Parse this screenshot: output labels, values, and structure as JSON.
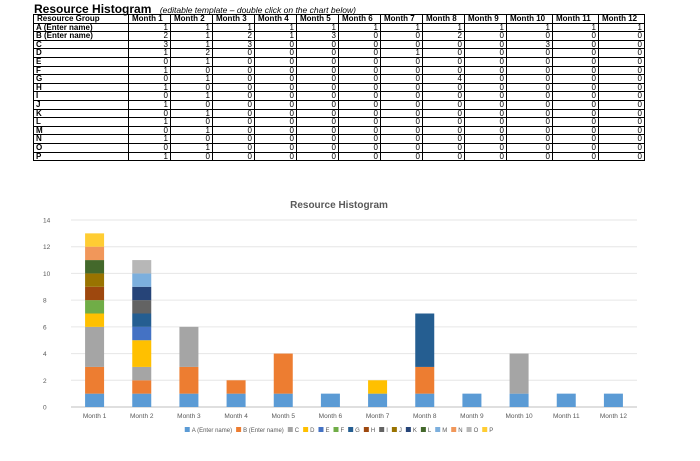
{
  "header": {
    "title": "Resource Histogram",
    "subtitle": "(editable template – double click on the chart below)"
  },
  "table": {
    "columns": [
      "Resource Group",
      "Month 1",
      "Month 2",
      "Month 3",
      "Month 4",
      "Month 5",
      "Month 6",
      "Month 7",
      "Month 8",
      "Month 9",
      "Month 10",
      "Month 11",
      "Month 12"
    ],
    "rows": [
      {
        "label": "A (Enter name)",
        "values": [
          1,
          1,
          1,
          1,
          1,
          1,
          1,
          1,
          1,
          1,
          1,
          1
        ]
      },
      {
        "label": "B (Enter name)",
        "values": [
          2,
          1,
          2,
          1,
          3,
          0,
          0,
          2,
          0,
          0,
          0,
          0
        ]
      },
      {
        "label": "C",
        "values": [
          3,
          1,
          3,
          0,
          0,
          0,
          0,
          0,
          0,
          3,
          0,
          0
        ]
      },
      {
        "label": "D",
        "values": [
          1,
          2,
          0,
          0,
          0,
          0,
          1,
          0,
          0,
          0,
          0,
          0
        ]
      },
      {
        "label": "E",
        "values": [
          0,
          1,
          0,
          0,
          0,
          0,
          0,
          0,
          0,
          0,
          0,
          0
        ]
      },
      {
        "label": "F",
        "values": [
          1,
          0,
          0,
          0,
          0,
          0,
          0,
          0,
          0,
          0,
          0,
          0
        ]
      },
      {
        "label": "G",
        "values": [
          0,
          1,
          0,
          0,
          0,
          0,
          0,
          4,
          0,
          0,
          0,
          0
        ]
      },
      {
        "label": "H",
        "values": [
          1,
          0,
          0,
          0,
          0,
          0,
          0,
          0,
          0,
          0,
          0,
          0
        ]
      },
      {
        "label": "I",
        "values": [
          0,
          1,
          0,
          0,
          0,
          0,
          0,
          0,
          0,
          0,
          0,
          0
        ]
      },
      {
        "label": "J",
        "values": [
          1,
          0,
          0,
          0,
          0,
          0,
          0,
          0,
          0,
          0,
          0,
          0
        ]
      },
      {
        "label": "K",
        "values": [
          0,
          1,
          0,
          0,
          0,
          0,
          0,
          0,
          0,
          0,
          0,
          0
        ]
      },
      {
        "label": "L",
        "values": [
          1,
          0,
          0,
          0,
          0,
          0,
          0,
          0,
          0,
          0,
          0,
          0
        ]
      },
      {
        "label": "M",
        "values": [
          0,
          1,
          0,
          0,
          0,
          0,
          0,
          0,
          0,
          0,
          0,
          0
        ]
      },
      {
        "label": "N",
        "values": [
          1,
          0,
          0,
          0,
          0,
          0,
          0,
          0,
          0,
          0,
          0,
          0
        ]
      },
      {
        "label": "O",
        "values": [
          0,
          1,
          0,
          0,
          0,
          0,
          0,
          0,
          0,
          0,
          0,
          0
        ]
      },
      {
        "label": "P",
        "values": [
          1,
          0,
          0,
          0,
          0,
          0,
          0,
          0,
          0,
          0,
          0,
          0
        ]
      }
    ]
  },
  "chart_data": {
    "type": "bar",
    "stacked": true,
    "title": "Resource Histogram",
    "categories": [
      "Month 1",
      "Month 2",
      "Month 3",
      "Month 4",
      "Month 5",
      "Month 6",
      "Month 7",
      "Month 8",
      "Month 9",
      "Month 10",
      "Month 11",
      "Month 12"
    ],
    "ylim": [
      0,
      14
    ],
    "yticks": [
      0,
      2,
      4,
      6,
      8,
      10,
      12,
      14
    ],
    "grid": true,
    "legend_position": "bottom",
    "series": [
      {
        "name": "A (Enter name)",
        "color": "#5b9bd5",
        "values": [
          1,
          1,
          1,
          1,
          1,
          1,
          1,
          1,
          1,
          1,
          1,
          1
        ]
      },
      {
        "name": "B (Enter name)",
        "color": "#ed7d31",
        "values": [
          2,
          1,
          2,
          1,
          3,
          0,
          0,
          2,
          0,
          0,
          0,
          0
        ]
      },
      {
        "name": "C",
        "color": "#a5a5a5",
        "values": [
          3,
          1,
          3,
          0,
          0,
          0,
          0,
          0,
          0,
          3,
          0,
          0
        ]
      },
      {
        "name": "D",
        "color": "#ffc000",
        "values": [
          1,
          2,
          0,
          0,
          0,
          0,
          1,
          0,
          0,
          0,
          0,
          0
        ]
      },
      {
        "name": "E",
        "color": "#4472c4",
        "values": [
          0,
          1,
          0,
          0,
          0,
          0,
          0,
          0,
          0,
          0,
          0,
          0
        ]
      },
      {
        "name": "F",
        "color": "#70ad47",
        "values": [
          1,
          0,
          0,
          0,
          0,
          0,
          0,
          0,
          0,
          0,
          0,
          0
        ]
      },
      {
        "name": "G",
        "color": "#255e91",
        "values": [
          0,
          1,
          0,
          0,
          0,
          0,
          0,
          4,
          0,
          0,
          0,
          0
        ]
      },
      {
        "name": "H",
        "color": "#9e480e",
        "values": [
          1,
          0,
          0,
          0,
          0,
          0,
          0,
          0,
          0,
          0,
          0,
          0
        ]
      },
      {
        "name": "I",
        "color": "#636363",
        "values": [
          0,
          1,
          0,
          0,
          0,
          0,
          0,
          0,
          0,
          0,
          0,
          0
        ]
      },
      {
        "name": "J",
        "color": "#997300",
        "values": [
          1,
          0,
          0,
          0,
          0,
          0,
          0,
          0,
          0,
          0,
          0,
          0
        ]
      },
      {
        "name": "K",
        "color": "#264478",
        "values": [
          0,
          1,
          0,
          0,
          0,
          0,
          0,
          0,
          0,
          0,
          0,
          0
        ]
      },
      {
        "name": "L",
        "color": "#43682b",
        "values": [
          1,
          0,
          0,
          0,
          0,
          0,
          0,
          0,
          0,
          0,
          0,
          0
        ]
      },
      {
        "name": "M",
        "color": "#7cafdd",
        "values": [
          0,
          1,
          0,
          0,
          0,
          0,
          0,
          0,
          0,
          0,
          0,
          0
        ]
      },
      {
        "name": "N",
        "color": "#f1975a",
        "values": [
          1,
          0,
          0,
          0,
          0,
          0,
          0,
          0,
          0,
          0,
          0,
          0
        ]
      },
      {
        "name": "O",
        "color": "#b7b7b7",
        "values": [
          0,
          1,
          0,
          0,
          0,
          0,
          0,
          0,
          0,
          0,
          0,
          0
        ]
      },
      {
        "name": "P",
        "color": "#ffcd33",
        "values": [
          1,
          0,
          0,
          0,
          0,
          0,
          0,
          0,
          0,
          0,
          0,
          0
        ]
      }
    ]
  }
}
